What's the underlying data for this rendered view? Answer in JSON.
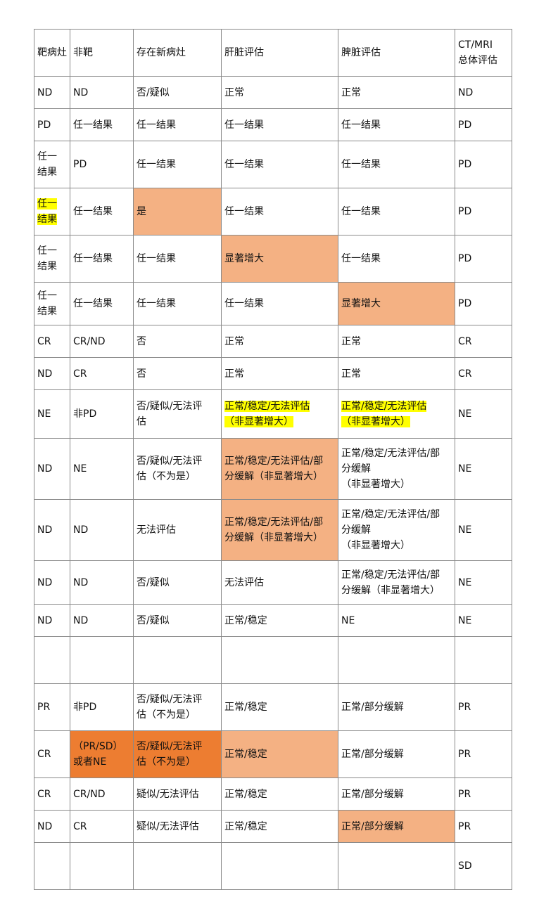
{
  "colors": {
    "peach": "#F4B183",
    "orange": "#ED7D31",
    "text_highlight": "#FFFF00"
  },
  "header": [
    "靶病灶",
    "非靶",
    "存在新病灶",
    "肝脏评估",
    "脾脏评估",
    "CT/MRI\n总体评估"
  ],
  "rows": [
    [
      {
        "t": "ND"
      },
      {
        "t": "ND"
      },
      {
        "t": "否/疑似"
      },
      {
        "t": "正常"
      },
      {
        "t": "正常"
      },
      {
        "t": "ND"
      }
    ],
    [
      {
        "t": "PD"
      },
      {
        "t": "任一结果"
      },
      {
        "t": "任一结果"
      },
      {
        "t": "任一结果"
      },
      {
        "t": "任一结果"
      },
      {
        "t": "PD"
      }
    ],
    [
      {
        "t": "任一\n结果"
      },
      {
        "t": "PD"
      },
      {
        "t": "任一结果"
      },
      {
        "t": "任一结果"
      },
      {
        "t": "任一结果"
      },
      {
        "t": "PD"
      }
    ],
    [
      {
        "t": "任一\n结果",
        "hl": true
      },
      {
        "t": "任一结果"
      },
      {
        "t": "是",
        "bg": "peach"
      },
      {
        "t": "任一结果"
      },
      {
        "t": "任一结果"
      },
      {
        "t": "PD"
      }
    ],
    [
      {
        "t": "任一\n结果"
      },
      {
        "t": "任一结果"
      },
      {
        "t": "任一结果"
      },
      {
        "t": "显著增大",
        "bg": "peach"
      },
      {
        "t": "任一结果"
      },
      {
        "t": "PD"
      }
    ],
    [
      {
        "t": "任一\n结果"
      },
      {
        "t": "任一结果"
      },
      {
        "t": "任一结果"
      },
      {
        "t": "任一结果"
      },
      {
        "t": "显著增大",
        "bg": "peach"
      },
      {
        "t": "PD"
      }
    ],
    [
      {
        "t": "CR"
      },
      {
        "t": "CR/ND"
      },
      {
        "t": "否"
      },
      {
        "t": "正常"
      },
      {
        "t": "正常"
      },
      {
        "t": "CR"
      }
    ],
    [
      {
        "t": "ND"
      },
      {
        "t": "CR"
      },
      {
        "t": "否"
      },
      {
        "t": "正常"
      },
      {
        "t": "正常"
      },
      {
        "t": "CR"
      }
    ],
    [
      {
        "t": "NE"
      },
      {
        "t": "非PD"
      },
      {
        "t": "否/疑似/无法评\n估"
      },
      {
        "t": "正常/稳定/无法评估\n（非显著增大）",
        "hl": true
      },
      {
        "t": "正常/稳定/无法评估\n（非显著增大）",
        "hl": true
      },
      {
        "t": "NE"
      }
    ],
    [
      {
        "t": "ND"
      },
      {
        "t": "NE"
      },
      {
        "t": "否/疑似/无法评\n估（不为是）"
      },
      {
        "t": "正常/稳定/无法评估/部\n分缓解（非显著增大）",
        "bg": "peach"
      },
      {
        "t": "正常/稳定/无法评估/部\n分缓解\n（非显著增大）"
      },
      {
        "t": "NE"
      }
    ],
    [
      {
        "t": "ND"
      },
      {
        "t": "ND"
      },
      {
        "t": "无法评估"
      },
      {
        "t": "正常/稳定/无法评估/部\n分缓解（非显著增大）",
        "bg": "peach"
      },
      {
        "t": "正常/稳定/无法评估/部\n分缓解\n（非显著增大）"
      },
      {
        "t": "NE"
      }
    ],
    [
      {
        "t": "ND"
      },
      {
        "t": "ND"
      },
      {
        "t": "否/疑似"
      },
      {
        "t": "无法评估"
      },
      {
        "t": "正常/稳定/无法评估/部\n分缓解（非显著增大）"
      },
      {
        "t": "NE"
      }
    ],
    [
      {
        "t": "ND"
      },
      {
        "t": "ND"
      },
      {
        "t": "否/疑似"
      },
      {
        "t": "正常/稳定"
      },
      {
        "t": "NE"
      },
      {
        "t": "NE"
      }
    ],
    [
      {
        "t": ""
      },
      {
        "t": ""
      },
      {
        "t": ""
      },
      {
        "t": ""
      },
      {
        "t": ""
      },
      {
        "t": ""
      }
    ],
    [
      {
        "t": "PR"
      },
      {
        "t": "非PD"
      },
      {
        "t": "否/疑似/无法评\n估（不为是）"
      },
      {
        "t": "正常/稳定"
      },
      {
        "t": "正常/部分缓解"
      },
      {
        "t": "PR"
      }
    ],
    [
      {
        "t": "CR"
      },
      {
        "t": "  （PR/SD）\n或者NE",
        "bg": "orange"
      },
      {
        "t": "否/疑似/无法评\n估（不为是）",
        "bg": "orange"
      },
      {
        "t": "正常/稳定",
        "bg": "peach"
      },
      {
        "t": "正常/部分缓解"
      },
      {
        "t": "PR"
      }
    ],
    [
      {
        "t": "CR"
      },
      {
        "t": "    CR/ND"
      },
      {
        "t": "疑似/无法评估"
      },
      {
        "t": "正常/稳定"
      },
      {
        "t": "正常/部分缓解"
      },
      {
        "t": "PR"
      }
    ],
    [
      {
        "t": "ND"
      },
      {
        "t": "CR"
      },
      {
        "t": "疑似/无法评估"
      },
      {
        "t": "正常/稳定"
      },
      {
        "t": "正常/部分缓解",
        "bg": "peach"
      },
      {
        "t": "PR"
      }
    ],
    [
      {
        "t": ""
      },
      {
        "t": ""
      },
      {
        "t": ""
      },
      {
        "t": ""
      },
      {
        "t": ""
      },
      {
        "t": "SD"
      }
    ]
  ]
}
